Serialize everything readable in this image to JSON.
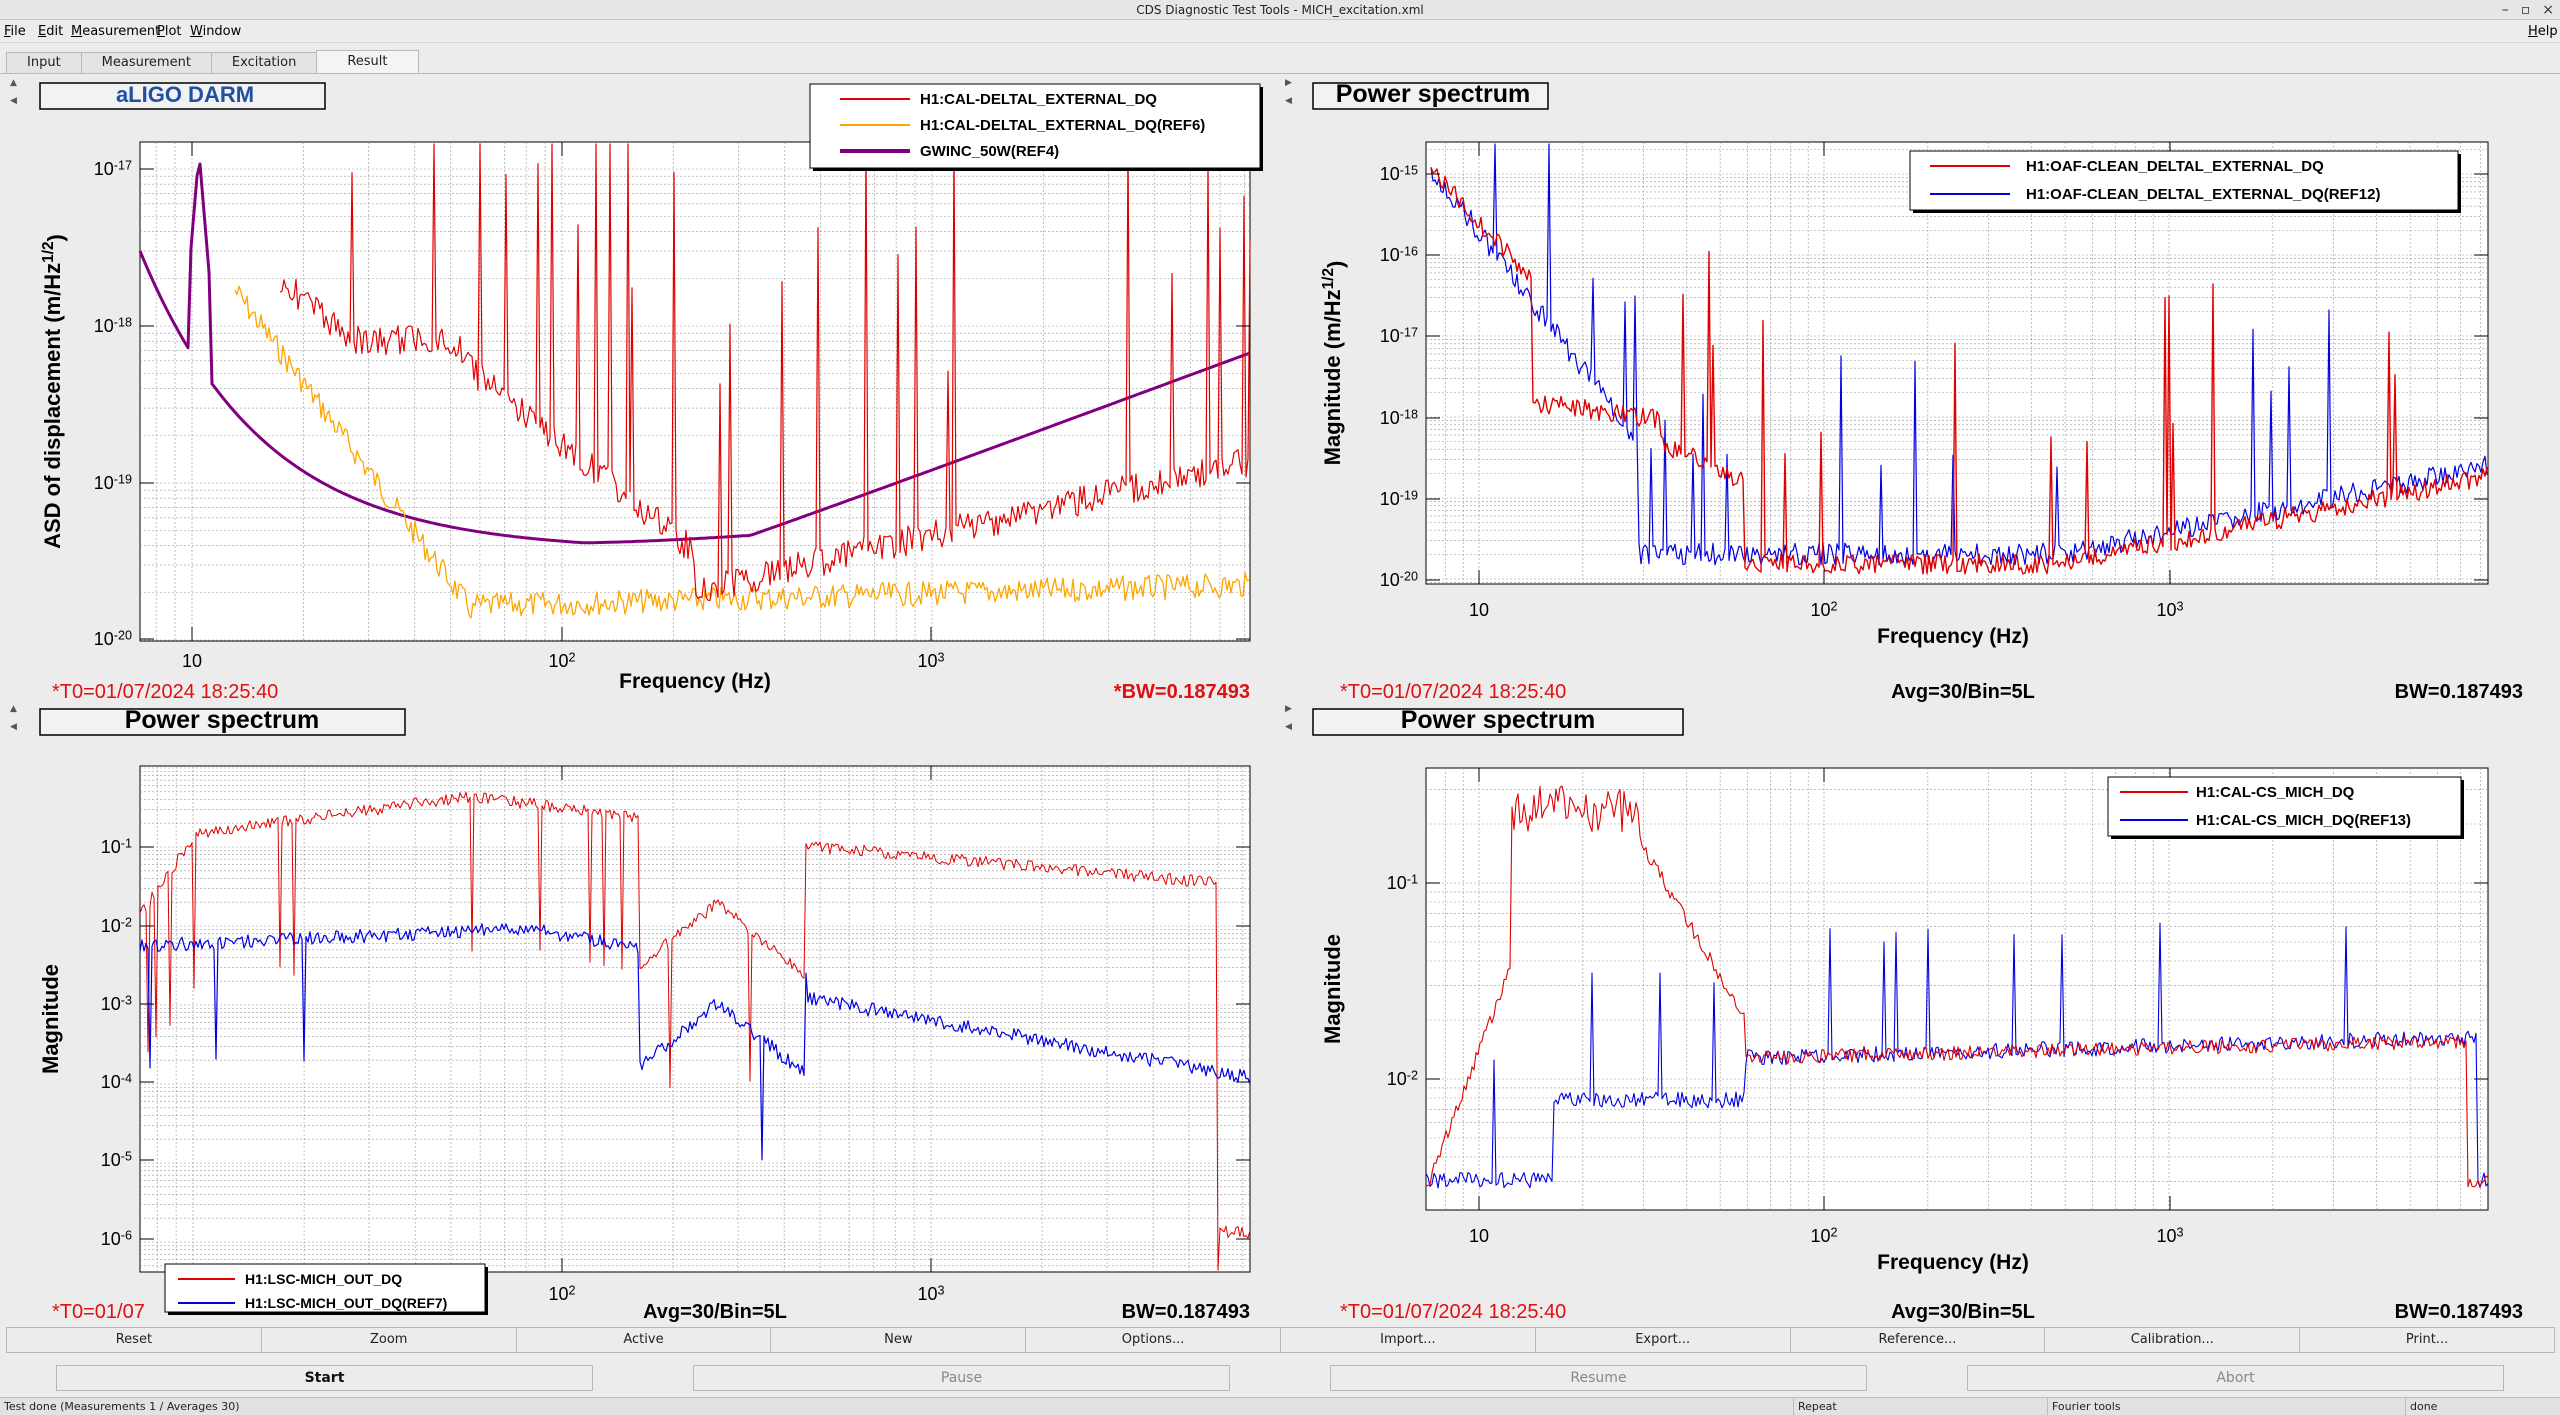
{
  "window": {
    "title": "CDS Diagnostic Test Tools - MICH_excitation.xml",
    "controls": [
      "–",
      "▫",
      "×"
    ]
  },
  "menu": [
    "File",
    "Edit",
    "Measurement",
    "Plot",
    "Window"
  ],
  "help": "Help",
  "tabs": [
    "Input",
    "Measurement",
    "Excitation",
    "Result"
  ],
  "active_tab": "Result",
  "panels": [
    {
      "title": "aLIGO DARM",
      "title_color": "#2050a0",
      "ylabel": "ASD of displacement (m/Hz^1/2)",
      "xlabel": "Frequency (Hz)",
      "footer_left": "*T0=01/07/2024 18:25:40",
      "footer_mid": "",
      "footer_right": "*BW=0.187493",
      "footer_right_color": "#e01010",
      "yticks": [
        "10^-17",
        "10^-18",
        "10^-19",
        "10^-20"
      ],
      "xticks": [
        "10",
        "10^2",
        "10^3"
      ],
      "legend": [
        {
          "name": "H1:CAL-DELTAL_EXTERNAL_DQ",
          "color": "#e00000"
        },
        {
          "name": "H1:CAL-DELTAL_EXTERNAL_DQ(REF6)",
          "color": "#ffa500"
        },
        {
          "name": "GWINC_50W(REF4)",
          "color": "#800080"
        }
      ]
    },
    {
      "title": "Power spectrum",
      "title_color": "#000000",
      "ylabel": "Magnitude (m/Hz^1/2)",
      "xlabel": "Frequency (Hz)",
      "footer_left": "*T0=01/07/2024 18:25:40",
      "footer_mid": "Avg=30/Bin=5L",
      "footer_right": "BW=0.187493",
      "footer_right_color": "#000000",
      "yticks": [
        "10^-15",
        "10^-16",
        "10^-17",
        "10^-18",
        "10^-19",
        "10^-20"
      ],
      "xticks": [
        "10",
        "10^2",
        "10^3"
      ],
      "legend": [
        {
          "name": "H1:OAF-CLEAN_DELTAL_EXTERNAL_DQ",
          "color": "#e00000"
        },
        {
          "name": "H1:OAF-CLEAN_DELTAL_EXTERNAL_DQ(REF12)",
          "color": "#0000e0"
        }
      ]
    },
    {
      "title": "Power spectrum",
      "title_color": "#000000",
      "ylabel": "Magnitude",
      "xlabel": "",
      "footer_left": "*T0=01/07",
      "footer_mid": "Avg=30/Bin=5L",
      "footer_right": "BW=0.187493",
      "footer_right_color": "#000000",
      "yticks": [
        "10^-1",
        "10^-2",
        "10^-3",
        "10^-4",
        "10^-5",
        "10^-6"
      ],
      "xticks": [
        "10^2",
        "10^3"
      ],
      "legend": [
        {
          "name": "H1:LSC-MICH_OUT_DQ",
          "color": "#e00000"
        },
        {
          "name": "H1:LSC-MICH_OUT_DQ(REF7)",
          "color": "#0000e0"
        }
      ]
    },
    {
      "title": "Power spectrum",
      "title_color": "#000000",
      "ylabel": "Magnitude",
      "xlabel": "Frequency (Hz)",
      "footer_left": "*T0=01/07/2024 18:25:40",
      "footer_mid": "Avg=30/Bin=5L",
      "footer_right": "BW=0.187493",
      "footer_right_color": "#000000",
      "yticks": [
        "10^-1",
        "10^-2"
      ],
      "xticks": [
        "10",
        "10^2",
        "10^3"
      ],
      "legend": [
        {
          "name": "H1:CAL-CS_MICH_DQ",
          "color": "#e00000"
        },
        {
          "name": "H1:CAL-CS_MICH_DQ(REF13)",
          "color": "#0000e0"
        }
      ]
    }
  ],
  "buttons_row1": [
    "Reset",
    "Zoom",
    "Active",
    "New",
    "Options...",
    "Import...",
    "Export...",
    "Reference...",
    "Calibration...",
    "Print..."
  ],
  "buttons_row2": [
    {
      "label": "Start",
      "state": "primary"
    },
    {
      "label": "Pause",
      "state": "disabled"
    },
    {
      "label": "Resume",
      "state": "disabled"
    },
    {
      "label": "Abort",
      "state": "disabled"
    }
  ],
  "status": {
    "message": "Test done (Measurements 1 / Averages 30)",
    "repeat": "Repeat",
    "fourier": "Fourier tools",
    "done": "done"
  }
}
